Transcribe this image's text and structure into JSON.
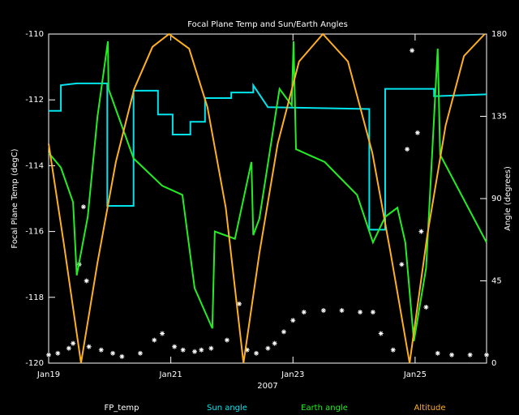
{
  "chart_data": {
    "type": "line",
    "title": "Focal Plane Temp and Sun/Earth Angles",
    "xlabel": "2007",
    "ylabel": "Focal Plane Temp (degC)",
    "y2label": "Angle (degrees)",
    "xlim": [
      0,
      7.17
    ],
    "xticks": [
      {
        "value": 0,
        "label": "Jan19"
      },
      {
        "value": 2,
        "label": "Jan21"
      },
      {
        "value": 4,
        "label": "Jan23"
      },
      {
        "value": 6,
        "label": "Jan25"
      }
    ],
    "ylim": [
      -120,
      -110
    ],
    "yticks": [
      -120,
      -118,
      -116,
      -114,
      -112,
      -110
    ],
    "y2lim": [
      0,
      180
    ],
    "y2ticks": [
      0,
      45,
      90,
      135,
      180
    ],
    "series": [
      {
        "name": "FP_temp",
        "color": "#ffffff",
        "marker": "star",
        "axis": "y",
        "x": [
          0,
          0.15,
          0.33,
          0.4,
          0.5,
          0.57,
          0.62,
          0.66,
          0.86,
          1.05,
          1.2,
          1.5,
          1.73,
          1.86,
          2.06,
          2.2,
          2.39,
          2.5,
          2.66,
          2.92,
          3.12,
          3.25,
          3.4,
          3.59,
          3.7,
          3.85,
          4.0,
          4.18,
          4.5,
          4.8,
          5.1,
          5.31,
          5.44,
          5.64,
          5.78,
          5.87,
          5.95,
          6.04,
          6.1,
          6.18,
          6.37,
          6.6,
          6.9,
          7.17
        ],
        "values": [
          -119.75,
          -119.7,
          -119.55,
          -119.4,
          -117,
          -115.25,
          -117.5,
          -119.5,
          -119.6,
          -119.7,
          -119.8,
          -119.7,
          -119.3,
          -119.1,
          -119.5,
          -119.6,
          -119.65,
          -119.6,
          -119.55,
          -119.3,
          -118.2,
          -119.6,
          -119.7,
          -119.55,
          -119.4,
          -119.05,
          -118.7,
          -118.45,
          -118.4,
          -118.4,
          -118.45,
          -118.45,
          -119.1,
          -119.6,
          -117,
          -113.5,
          -110.5,
          -113,
          -116,
          -118.3,
          -119.7,
          -119.75,
          -119.75,
          -119.75
        ]
      },
      {
        "name": "Sun angle",
        "color": "#00e5ee",
        "axis": "y2",
        "x": [
          0,
          0.2,
          0.2,
          0.46,
          0.96,
          0.96,
          1.39,
          1.39,
          1.79,
          1.79,
          2.03,
          2.03,
          2.32,
          2.32,
          2.56,
          2.56,
          2.99,
          2.99,
          3.35,
          3.35,
          3.59,
          5.25,
          5.25,
          5.51,
          5.51,
          6.31,
          6.31,
          7.17
        ],
        "values": [
          138,
          138,
          152,
          153,
          153,
          86,
          86,
          149,
          149,
          136,
          136,
          125,
          125,
          132,
          132,
          145,
          145,
          148,
          148,
          152,
          140,
          139,
          73,
          73,
          150,
          150,
          146,
          147
        ]
      },
      {
        "name": "Earth angle",
        "color": "#22ee22",
        "axis": "y2",
        "x": [
          0,
          0.2,
          0.4,
          0.46,
          0.64,
          0.8,
          0.97,
          0.98,
          1.39,
          1.86,
          2.19,
          2.39,
          2.68,
          2.72,
          3.05,
          3.32,
          3.35,
          3.45,
          3.78,
          3.98,
          4.01,
          4.05,
          4.52,
          5.05,
          5.31,
          5.51,
          5.71,
          5.84,
          5.98,
          6.18,
          6.37,
          6.41,
          7.17
        ],
        "values": [
          115,
          107,
          88,
          48,
          80,
          135,
          176,
          150,
          112,
          97,
          92,
          41,
          19,
          72,
          68,
          110,
          70,
          79,
          150,
          141,
          176,
          117,
          110,
          92,
          66,
          80,
          85,
          66,
          12,
          52,
          172,
          114,
          66
        ]
      },
      {
        "name": "Altitude",
        "color": "#ffb020",
        "axis": "y2",
        "x": [
          0,
          0.25,
          0.53,
          0.8,
          1.1,
          1.4,
          1.7,
          1.97,
          2.3,
          2.6,
          2.9,
          3.19,
          3.45,
          3.75,
          4.1,
          4.49,
          4.9,
          5.3,
          5.6,
          5.91,
          6.2,
          6.5,
          6.8,
          7.14
        ],
        "values": [
          120,
          65,
          0,
          55,
          110,
          150,
          173,
          180,
          172,
          140,
          85,
          0,
          60,
          120,
          165,
          180,
          165,
          115,
          60,
          0,
          70,
          130,
          168,
          180
        ]
      }
    ]
  }
}
